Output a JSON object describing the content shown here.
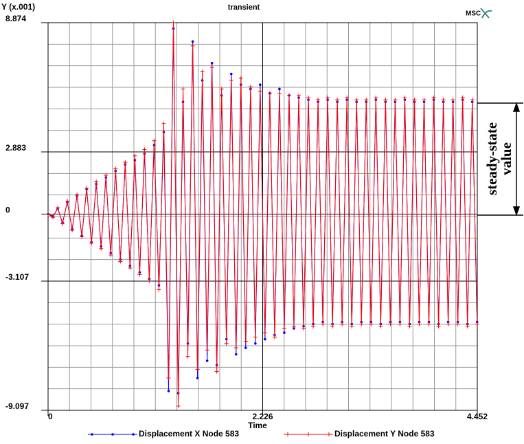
{
  "chart_data": {
    "type": "line",
    "title": "transient",
    "y_label": "Y (x.001)",
    "x_label": "Time",
    "logo": "MSC",
    "annotations": [
      "steady-state",
      "value"
    ],
    "xlim": [
      0,
      4.452
    ],
    "xticks": [
      0,
      2.226,
      4.452
    ],
    "ylim": [
      -9.097,
      8.874
    ],
    "yticks": [
      -9.097,
      -3.107,
      0,
      2.883,
      8.874
    ],
    "grid": true,
    "x": [
      0,
      0.05,
      0.1,
      0.15,
      0.2,
      0.25,
      0.3,
      0.35,
      0.4,
      0.45,
      0.5,
      0.55,
      0.6,
      0.65,
      0.7,
      0.75,
      0.8,
      0.85,
      0.9,
      0.95,
      1,
      1.05,
      1.1,
      1.15,
      1.2,
      1.25,
      1.3,
      1.35,
      1.4,
      1.45,
      1.5,
      1.55,
      1.6,
      1.65,
      1.7,
      1.75,
      1.8,
      1.85,
      1.9,
      1.95,
      2,
      2.05,
      2.1,
      2.15,
      2.2,
      2.25,
      2.3,
      2.35,
      2.4,
      2.45,
      2.5,
      2.55,
      2.6,
      2.65,
      2.7,
      2.75,
      2.8,
      2.85,
      2.9,
      2.95,
      3,
      3.05,
      3.1,
      3.15,
      3.2,
      3.25,
      3.3,
      3.35,
      3.4,
      3.45,
      3.5,
      3.55,
      3.6,
      3.65,
      3.7,
      3.75,
      3.8,
      3.85,
      3.9,
      3.95,
      4,
      4.05,
      4.1,
      4.15,
      4.2,
      4.25,
      4.3,
      4.35,
      4.4,
      4.45
    ],
    "series": [
      {
        "name": "Displacement X Node 583",
        "color": "#0000ff",
        "marker": "dot",
        "values": [
          0,
          -0.1,
          0.25,
          -0.4,
          0.55,
          -0.7,
          0.85,
          -1.0,
          1.15,
          -1.3,
          1.4,
          -1.5,
          1.7,
          -1.8,
          2.0,
          -2.1,
          2.3,
          -2.4,
          2.5,
          -2.7,
          2.8,
          -3.0,
          3.2,
          -3.3,
          3.8,
          -8.2,
          8.6,
          -8.3,
          5.2,
          -6.0,
          8.0,
          -7.6,
          6.2,
          -6.8,
          7.0,
          -7.0,
          5.5,
          -5.8,
          6.5,
          -6.5,
          6.0,
          -6.2,
          5.8,
          -6.0,
          6.0,
          -5.8,
          5.6,
          -5.6,
          5.8,
          -5.5,
          5.5,
          -5.3,
          5.4,
          -5.2,
          5.3,
          -5.1,
          5.2,
          -5.0,
          5.3,
          -5.1,
          5.2,
          -5.0,
          5.3,
          -5.1,
          5.2,
          -5.0,
          5.2,
          -5.0,
          5.3,
          -5.1,
          5.2,
          -5.0,
          5.2,
          -5.0,
          5.3,
          -5.1,
          5.2,
          -5.0,
          5.2,
          -5.0,
          5.3,
          -5.1,
          5.2,
          -5.0,
          5.2,
          -5.0,
          5.3,
          -5.1,
          5.2,
          -5.0
        ]
      },
      {
        "name": "Displacement Y Node 583",
        "color": "#ff0000",
        "marker": "plus",
        "values": [
          0,
          -0.15,
          0.3,
          -0.45,
          0.6,
          -0.75,
          0.9,
          -1.05,
          1.2,
          -1.35,
          1.5,
          -1.6,
          1.8,
          -1.9,
          2.1,
          -2.2,
          2.4,
          -2.5,
          2.7,
          -2.8,
          3.0,
          -3.1,
          3.4,
          -3.5,
          4.2,
          -7.6,
          8.87,
          -8.9,
          5.8,
          -6.6,
          7.8,
          -7.2,
          6.6,
          -6.3,
          6.8,
          -7.3,
          5.8,
          -6.0,
          6.2,
          -6.2,
          6.3,
          -5.9,
          5.9,
          -5.7,
          5.7,
          -5.5,
          5.6,
          -5.7,
          5.6,
          -5.3,
          5.5,
          -5.2,
          5.5,
          -5.3,
          5.4,
          -5.2,
          5.3,
          -5.1,
          5.4,
          -5.2,
          5.3,
          -5.1,
          5.4,
          -5.2,
          5.3,
          -5.1,
          5.3,
          -5.1,
          5.4,
          -5.2,
          5.3,
          -5.1,
          5.3,
          -5.1,
          5.4,
          -5.2,
          5.3,
          -5.1,
          5.3,
          -5.1,
          5.4,
          -5.2,
          5.3,
          -5.1,
          5.3,
          -5.1,
          5.4,
          -5.2,
          5.3,
          -5.1
        ]
      }
    ]
  }
}
